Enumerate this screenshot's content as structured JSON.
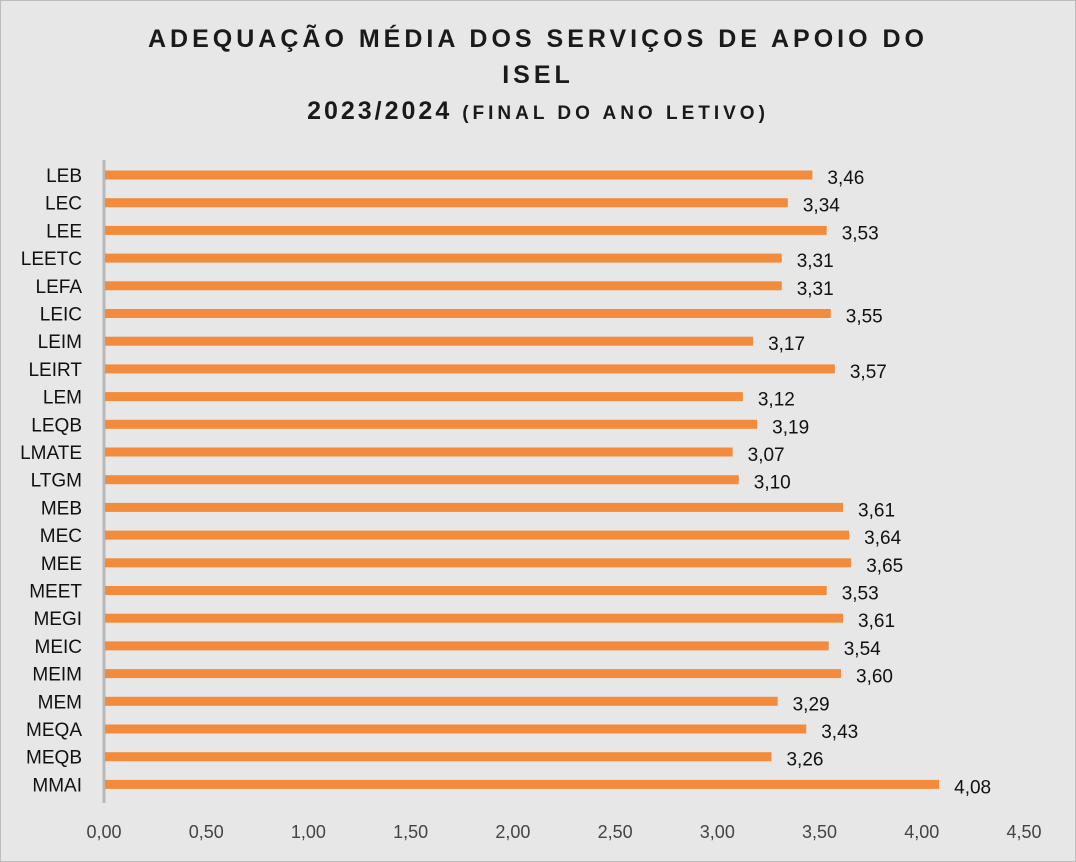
{
  "chart_data": {
    "type": "bar",
    "orientation": "horizontal",
    "title_line1": "ADEQUAÇÃO MÉDIA DOS SERVIÇOS DE APOIO DO",
    "title_line2": "ISEL",
    "title_line3_main": "2023/2024",
    "title_line3_sub": "(FINAL DO ANO LETIVO)",
    "categories": [
      "LEB",
      "LEC",
      "LEE",
      "LEETC",
      "LEFA",
      "LEIC",
      "LEIM",
      "LEIRT",
      "LEM",
      "LEQB",
      "LMATE",
      "LTGM",
      "MEB",
      "MEC",
      "MEE",
      "MEET",
      "MEGI",
      "MEIC",
      "MEIM",
      "MEM",
      "MEQA",
      "MEQB",
      "MMAI"
    ],
    "values": [
      3.46,
      3.34,
      3.53,
      3.31,
      3.31,
      3.55,
      3.17,
      3.57,
      3.12,
      3.19,
      3.07,
      3.1,
      3.61,
      3.64,
      3.65,
      3.53,
      3.61,
      3.54,
      3.6,
      3.29,
      3.43,
      3.26,
      4.08
    ],
    "value_labels": [
      "3,46",
      "3,34",
      "3,53",
      "3,31",
      "3,31",
      "3,55",
      "3,17",
      "3,57",
      "3,12",
      "3,19",
      "3,07",
      "3,10",
      "3,61",
      "3,64",
      "3,65",
      "3,53",
      "3,61",
      "3,54",
      "3,60",
      "3,29",
      "3,43",
      "3,26",
      "4,08"
    ],
    "xlim": [
      0,
      4.5
    ],
    "xticks": [
      "0,00",
      "0,50",
      "1,00",
      "1,50",
      "2,00",
      "2,50",
      "3,00",
      "3,50",
      "4,00",
      "4,50"
    ],
    "bar_color": "#f28c3c",
    "grid": false
  }
}
